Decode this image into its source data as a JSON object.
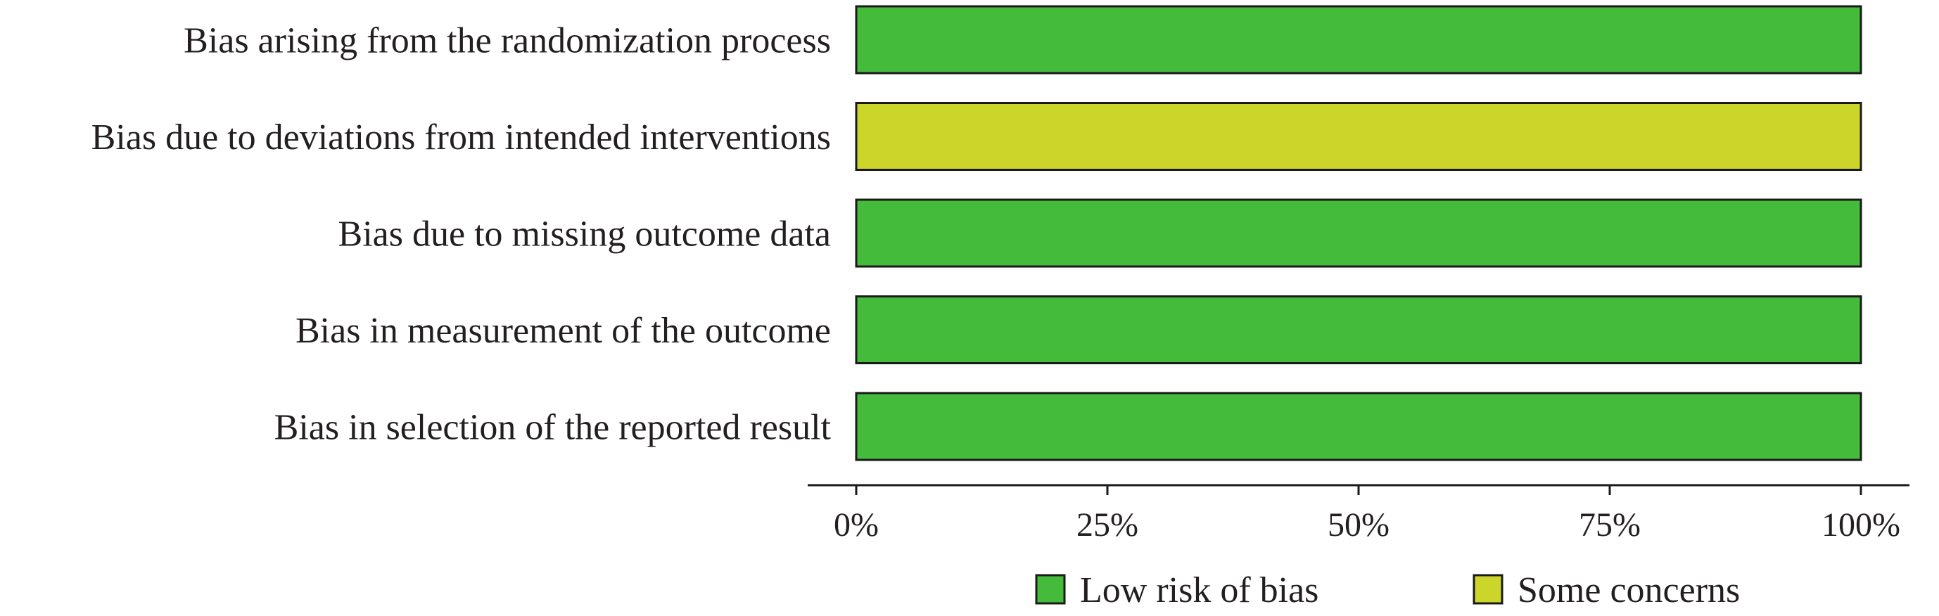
{
  "chart_data": {
    "type": "bar",
    "orientation": "horizontal",
    "stacked": true,
    "categories": [
      "Bias arising from the randomization process",
      "Bias due to deviations from intended interventions",
      "Bias due to missing outcome data",
      "Bias in measurement of the outcome",
      "Bias in selection of the reported result"
    ],
    "series": [
      {
        "name": "Low risk of bias",
        "color": "#45bb3b",
        "values": [
          100,
          0,
          100,
          100,
          100
        ]
      },
      {
        "name": "Some concerns",
        "color": "#ccd62a",
        "values": [
          0,
          100,
          0,
          0,
          0
        ]
      }
    ],
    "xlim": [
      0,
      100
    ],
    "x_ticks": [
      0,
      25,
      50,
      75,
      100
    ],
    "x_tick_labels": [
      "0%",
      "25%",
      "50%",
      "75%",
      "100%"
    ],
    "title": "",
    "xlabel": "",
    "ylabel": "",
    "grid": false,
    "legend_position": "bottom"
  }
}
